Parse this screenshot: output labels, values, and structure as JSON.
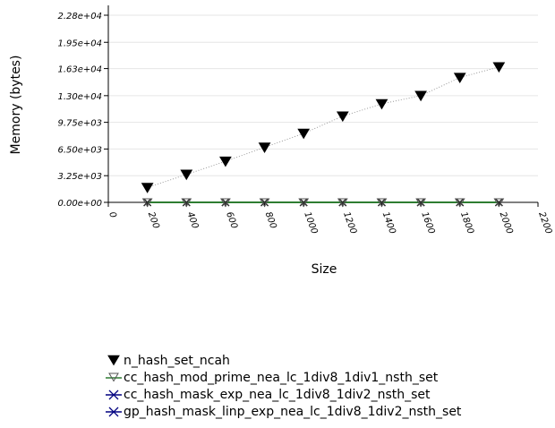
{
  "chart_data": {
    "type": "line",
    "xlabel": "Size",
    "ylabel": "Memory (bytes)",
    "xlim": [
      0,
      2200
    ],
    "ylim": [
      0,
      24000
    ],
    "x_ticks": [
      0,
      200,
      400,
      600,
      800,
      1000,
      1200,
      1400,
      1600,
      1800,
      2000,
      2200
    ],
    "x_tick_labels": [
      "0",
      "200",
      "400",
      "600",
      "800",
      "1000",
      "1200",
      "1400",
      "1600",
      "1800",
      "2000",
      "2200"
    ],
    "y_ticks": [
      0,
      3250,
      6500,
      9750,
      13000,
      16300,
      19500,
      22800
    ],
    "y_tick_labels": [
      "0.00e+00",
      "3.25e+03",
      "6.50e+03",
      "9.75e+03",
      "1.30e+04",
      "1.63e+04",
      "1.95e+04",
      "2.28e+04"
    ],
    "grid": "horizontal",
    "legend_position": "bottom",
    "x": [
      200,
      400,
      600,
      800,
      1000,
      1200,
      1400,
      1600,
      1800,
      2000
    ],
    "series": [
      {
        "name": "n_hash_set_ncah",
        "values": [
          1800,
          3400,
          5000,
          6700,
          8400,
          10500,
          12000,
          13000,
          15200,
          16500
        ],
        "color": "#000000",
        "marker": "triangle-down-filled",
        "line": "dotted"
      },
      {
        "name": "cc_hash_mod_prime_nea_lc_1div8_1div1_nsth_set",
        "values": [
          0,
          0,
          0,
          0,
          0,
          0,
          0,
          0,
          0,
          0
        ],
        "color": "#2e7d32",
        "marker": "triangle-down-open",
        "line": "solid"
      },
      {
        "name": "cc_hash_mask_exp_nea_lc_1div8_1div2_nsth_set",
        "values": [
          0,
          0,
          0,
          0,
          0,
          0,
          0,
          0,
          0,
          0
        ],
        "color": "#000080",
        "marker": "x",
        "line": "solid"
      },
      {
        "name": "gp_hash_mask_linp_exp_nea_lc_1div8_1div2_nsth_set",
        "values": [
          0,
          0,
          0,
          0,
          0,
          0,
          0,
          0,
          0,
          0
        ],
        "color": "#000080",
        "marker": "x",
        "line": "solid"
      }
    ]
  }
}
